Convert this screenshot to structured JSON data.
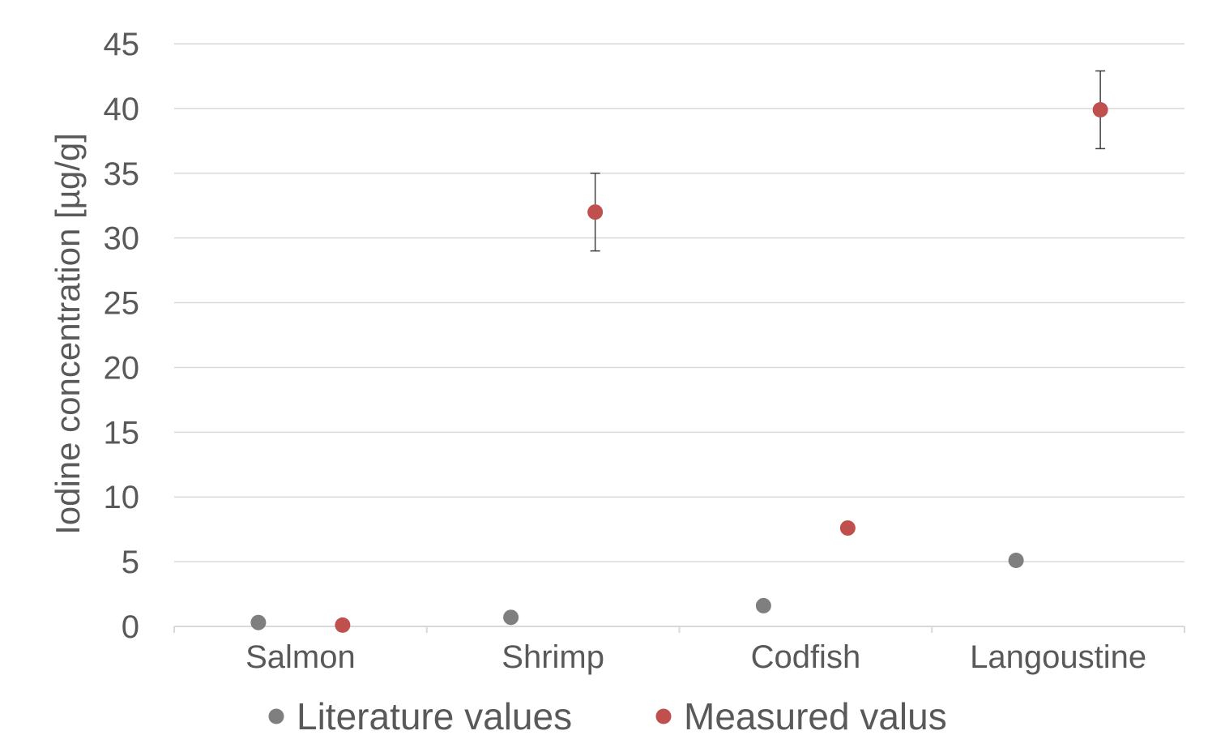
{
  "chart_data": {
    "type": "scatter",
    "categories": [
      "Salmon",
      "Shrimp",
      "Codfish",
      "Langoustine"
    ],
    "ylabel": "Iodine concentration [µg/g]",
    "ylim": [
      0,
      45
    ],
    "yticks": [
      0,
      5,
      10,
      15,
      20,
      25,
      30,
      35,
      40,
      45
    ],
    "grid": true,
    "legend_position": "bottom",
    "series": [
      {
        "name": "Literature values",
        "color": "#7f7f7f",
        "values": [
          0.3,
          0.7,
          1.6,
          5.1
        ]
      },
      {
        "name": "Measured valus",
        "color": "#c0504d",
        "values": [
          0.1,
          32,
          7.6,
          39.9
        ],
        "error": [
          0,
          3,
          0.4,
          3
        ]
      }
    ]
  }
}
